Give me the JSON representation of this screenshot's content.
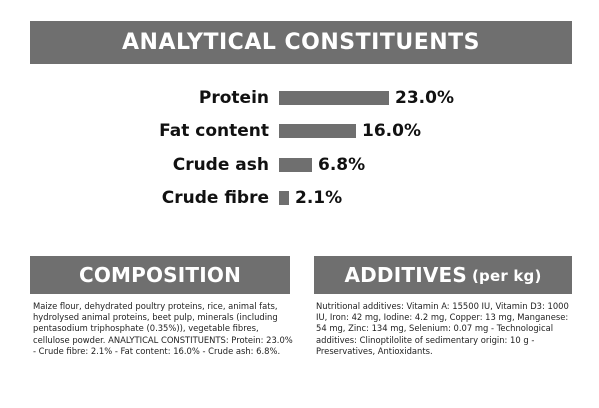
{
  "header": {
    "title": "ANALYTICAL CONSTITUENTS"
  },
  "constituents": [
    {
      "label": "Protein",
      "value_text": "23.0%",
      "value": 23.0
    },
    {
      "label": "Fat content",
      "value_text": "16.0%",
      "value": 16.0
    },
    {
      "label": "Crude ash",
      "value_text": "6.8%",
      "value": 6.8
    },
    {
      "label": "Crude fibre",
      "value_text": "2.1%",
      "value": 2.1
    }
  ],
  "composition": {
    "title": "COMPOSITION",
    "text": "Maize flour, dehydrated poultry proteins, rice, animal fats, hydrolysed animal proteins, beet pulp, minerals (including pentasodium triphosphate (0.35%)), vegetable fibres, cellulose powder. ANALYTICAL CONSTITUENTS: Protein: 23.0% - Crude fibre: 2.1% - Fat content: 16.0% - Crude ash: 6.8%."
  },
  "additives": {
    "title": "ADDITIVES",
    "title_suffix": "(per kg)",
    "text": "Nutritional additives: Vitamin A: 15500 IU, Vitamin D3: 1000 IU, Iron: 42 mg, Iodine: 4.2 mg, Copper: 13 mg, Manganese: 54 mg, Zinc: 134 mg, Selenium: 0.07 mg - Technological additives: Clinoptilolite of sedimentary origin: 10 g - Preservatives, Antioxidants."
  },
  "colors": {
    "banner": "#6f6f6f",
    "bar": "#6f6f6f",
    "text": "#111111"
  }
}
